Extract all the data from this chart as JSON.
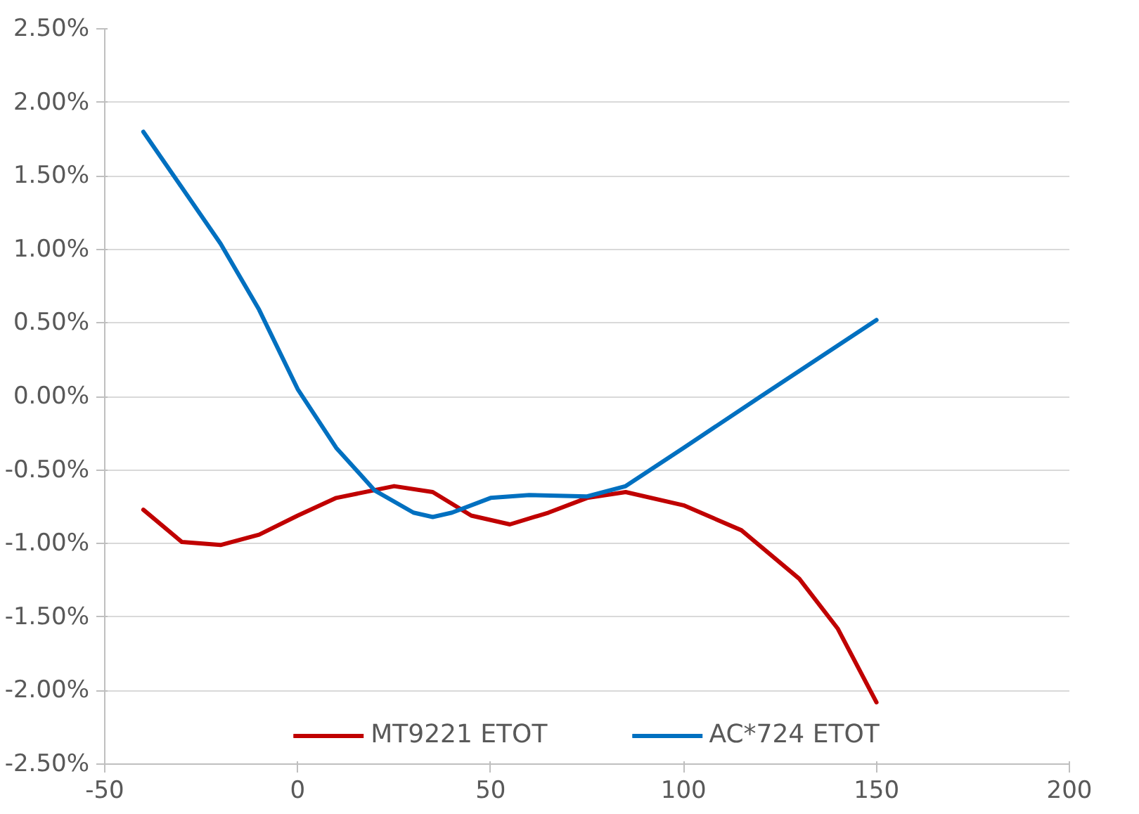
{
  "chart_data": {
    "type": "line",
    "xlim": [
      -50,
      200
    ],
    "xticks": [
      {
        "value": -50,
        "label": "-50"
      },
      0,
      50,
      100,
      150,
      200
    ],
    "ylim": [
      -2.5,
      2.5
    ],
    "yticks": [
      {
        "value": -2.5,
        "label": "-2.50%"
      },
      {
        "value": -2,
        "label": "-2.00%"
      },
      {
        "value": -1.5,
        "label": "-1.50%"
      },
      {
        "value": -1,
        "label": "-1.00%"
      },
      {
        "value": -0.5,
        "label": "-0.50%"
      },
      {
        "value": 0,
        "label": "0.00%"
      },
      {
        "value": 0.5,
        "label": "0.50%"
      },
      {
        "value": 1,
        "label": "1.00%"
      },
      {
        "value": 1.5,
        "label": "1.50%"
      },
      {
        "value": 2,
        "label": "2.00%"
      },
      {
        "value": 2.5,
        "label": "2.50%"
      }
    ],
    "grid": "y",
    "legend": "bottom",
    "series": [
      {
        "name": "MT9221 ETOT",
        "color": "#c00000",
        "x": [
          -40,
          -30,
          -20,
          -10,
          0,
          10,
          25,
          35,
          45,
          55,
          65,
          75,
          85,
          100,
          115,
          130,
          140,
          150
        ],
        "values": [
          -0.77,
          -0.99,
          -1.01,
          -0.94,
          -0.81,
          -0.69,
          -0.61,
          -0.65,
          -0.81,
          -0.87,
          -0.79,
          -0.69,
          -0.65,
          -0.74,
          -0.91,
          -1.24,
          -1.58,
          -2.08
        ]
      },
      {
        "name": "AC*724 ETOT",
        "color": "#0070c0",
        "x": [
          -40,
          -20,
          -10,
          0,
          10,
          20,
          30,
          35,
          40,
          50,
          60,
          75,
          85,
          100,
          120,
          150
        ],
        "values": [
          1.8,
          1.04,
          0.59,
          0.05,
          -0.35,
          -0.64,
          -0.79,
          -0.82,
          -0.79,
          -0.69,
          -0.67,
          -0.68,
          -0.61,
          -0.35,
          0,
          0.52
        ]
      }
    ]
  }
}
